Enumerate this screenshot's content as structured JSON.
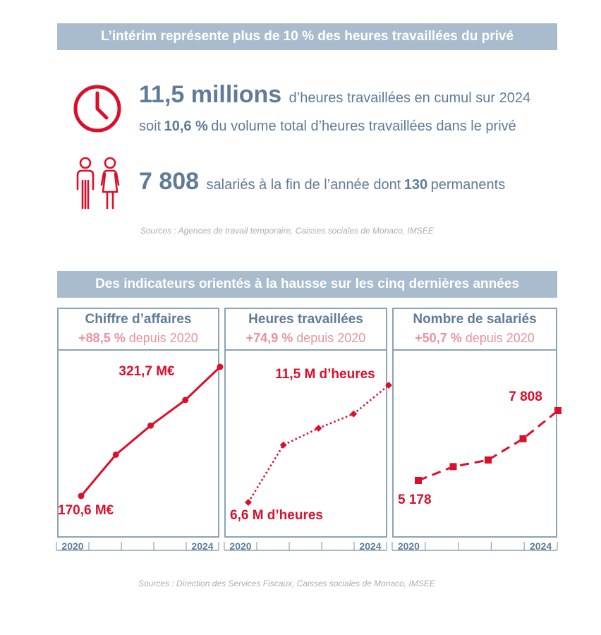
{
  "banner_top": "L’intérim représente plus de 10 % des heures travaillées du privé",
  "stats": {
    "hours_big": "11,5 millions",
    "hours_text": "d’heures travaillées en cumul sur 2024",
    "share_prefix": "soit",
    "share_value": "10,6 %",
    "share_text": "du volume total d’heures travaillées dans le privé",
    "employees_big": "7 808",
    "employees_text": "salariés à la fin de l’année dont",
    "permanent_value": "130",
    "permanent_text": "permanents"
  },
  "icons": {
    "clock": "clock-icon",
    "people": "people-icon"
  },
  "source_top": "Sources : Agences de travail temporaire, Caisses sociales de Monaco, IMSEE",
  "banner_bottom": "Des indicateurs orientés à la hausse sur les cinq dernières années",
  "source_bottom": "Sources : Direction des Services Fiscaux, Caisses sociales de Monaco, IMSEE",
  "colors": {
    "red": "#dc0f2b",
    "blue_text": "#5f7b98",
    "banner": "#a9bccd",
    "pink": "#e8929f",
    "border": "#8aa3b9"
  },
  "chart_data": [
    {
      "type": "line",
      "title": "Chiffre d’affaires",
      "growth_value": "+88,5 %",
      "growth_text": "depuis 2020",
      "x": [
        2020,
        2021,
        2022,
        2023,
        2024
      ],
      "x_tick_labels": [
        "2020",
        "",
        "",
        "",
        "2024"
      ],
      "values": [
        170.6,
        219,
        253,
        283,
        321.7
      ],
      "first_label": "170,6 M€",
      "last_label": "321,7 M€",
      "line_style": "solid",
      "marker": "circle"
    },
    {
      "type": "line",
      "title": "Heures travaillées",
      "growth_value": "+74,9 %",
      "growth_text": "depuis 2020",
      "x": [
        2020,
        2021,
        2022,
        2023,
        2024
      ],
      "x_tick_labels": [
        "2020",
        "",
        "",
        "",
        "2024"
      ],
      "values": [
        6.6,
        9.0,
        9.7,
        10.3,
        11.5
      ],
      "first_label": "6,6 M d’heures",
      "last_label": "11,5 M d’heures",
      "line_style": "dotted",
      "marker": "diamond"
    },
    {
      "type": "line",
      "title": "Nombre de salariés",
      "growth_value": "+50,7 %",
      "growth_text": "depuis 2020",
      "x": [
        2020,
        2021,
        2022,
        2023,
        2024
      ],
      "x_tick_labels": [
        "2020",
        "",
        "",
        "",
        "2024"
      ],
      "values": [
        5178,
        5700,
        5950,
        6750,
        7808
      ],
      "first_label": "5 178",
      "last_label": "7 808",
      "line_style": "dashed",
      "marker": "square"
    }
  ]
}
